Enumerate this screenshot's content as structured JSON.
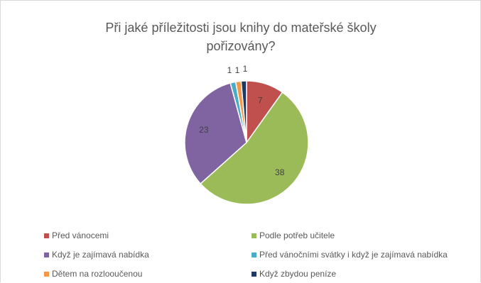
{
  "chart_data": {
    "type": "pie",
    "title": "Při jaké příležitosti jsou knihy do mateřské školy pořizovány?",
    "title_lines": [
      "Při jaké příležitosti jsou knihy do mateřské školy",
      "pořizovány?"
    ],
    "categories": [
      "Před vánocemi",
      "Podle potřeb učitele",
      "Když je zajímavá nabídka",
      "Před vánočními svátky i když je zajímavá nabídka",
      "Dětem na rozlooučenou",
      "Když zbydou peníze"
    ],
    "values": [
      7,
      38,
      23,
      1,
      1,
      1
    ],
    "colors": [
      "#c0504d",
      "#9bbb59",
      "#8064a2",
      "#4bacc6",
      "#f79646",
      "#1f3864"
    ],
    "legend_position": "bottom",
    "start_angle_deg": 0,
    "direction": "clockwise"
  }
}
